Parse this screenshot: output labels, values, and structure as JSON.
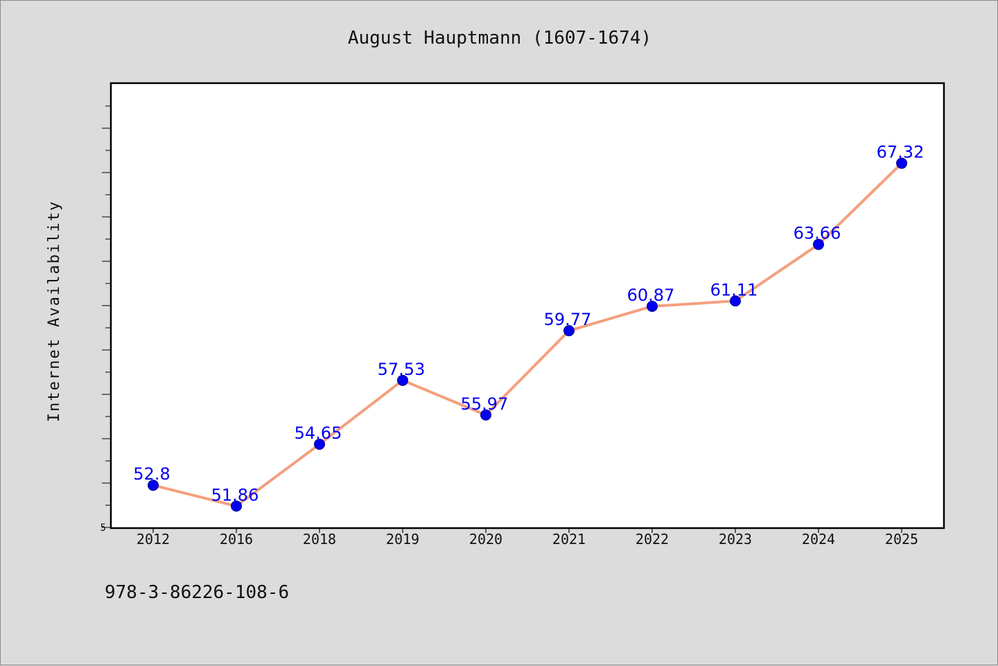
{
  "chart_data": {
    "type": "line",
    "title": "August Hauptmann (1607-1674)",
    "xlabel": "",
    "ylabel": "Internet Availability",
    "categories": [
      "2012",
      "2016",
      "2018",
      "2019",
      "2020",
      "2021",
      "2022",
      "2023",
      "2024",
      "2025"
    ],
    "series": [
      {
        "values": [
          52.8,
          51.86,
          54.65,
          57.53,
          55.97,
          59.77,
          60.87,
          61.11,
          63.66,
          67.32
        ]
      }
    ],
    "data_labels": [
      "52.8",
      "51.86",
      "54.65",
      "57.53",
      "55.97",
      "59.77",
      "60.87",
      "61.11",
      "63.66",
      "67.32"
    ],
    "ylim": [
      50.9,
      70.9
    ],
    "yticks_labeled": [
      "5"
    ],
    "grid": false,
    "line_color": "#f4a07e",
    "marker_color": "#0000ee",
    "label_color": "#0000ee",
    "footer_text": "978-3-86226-108-6"
  }
}
